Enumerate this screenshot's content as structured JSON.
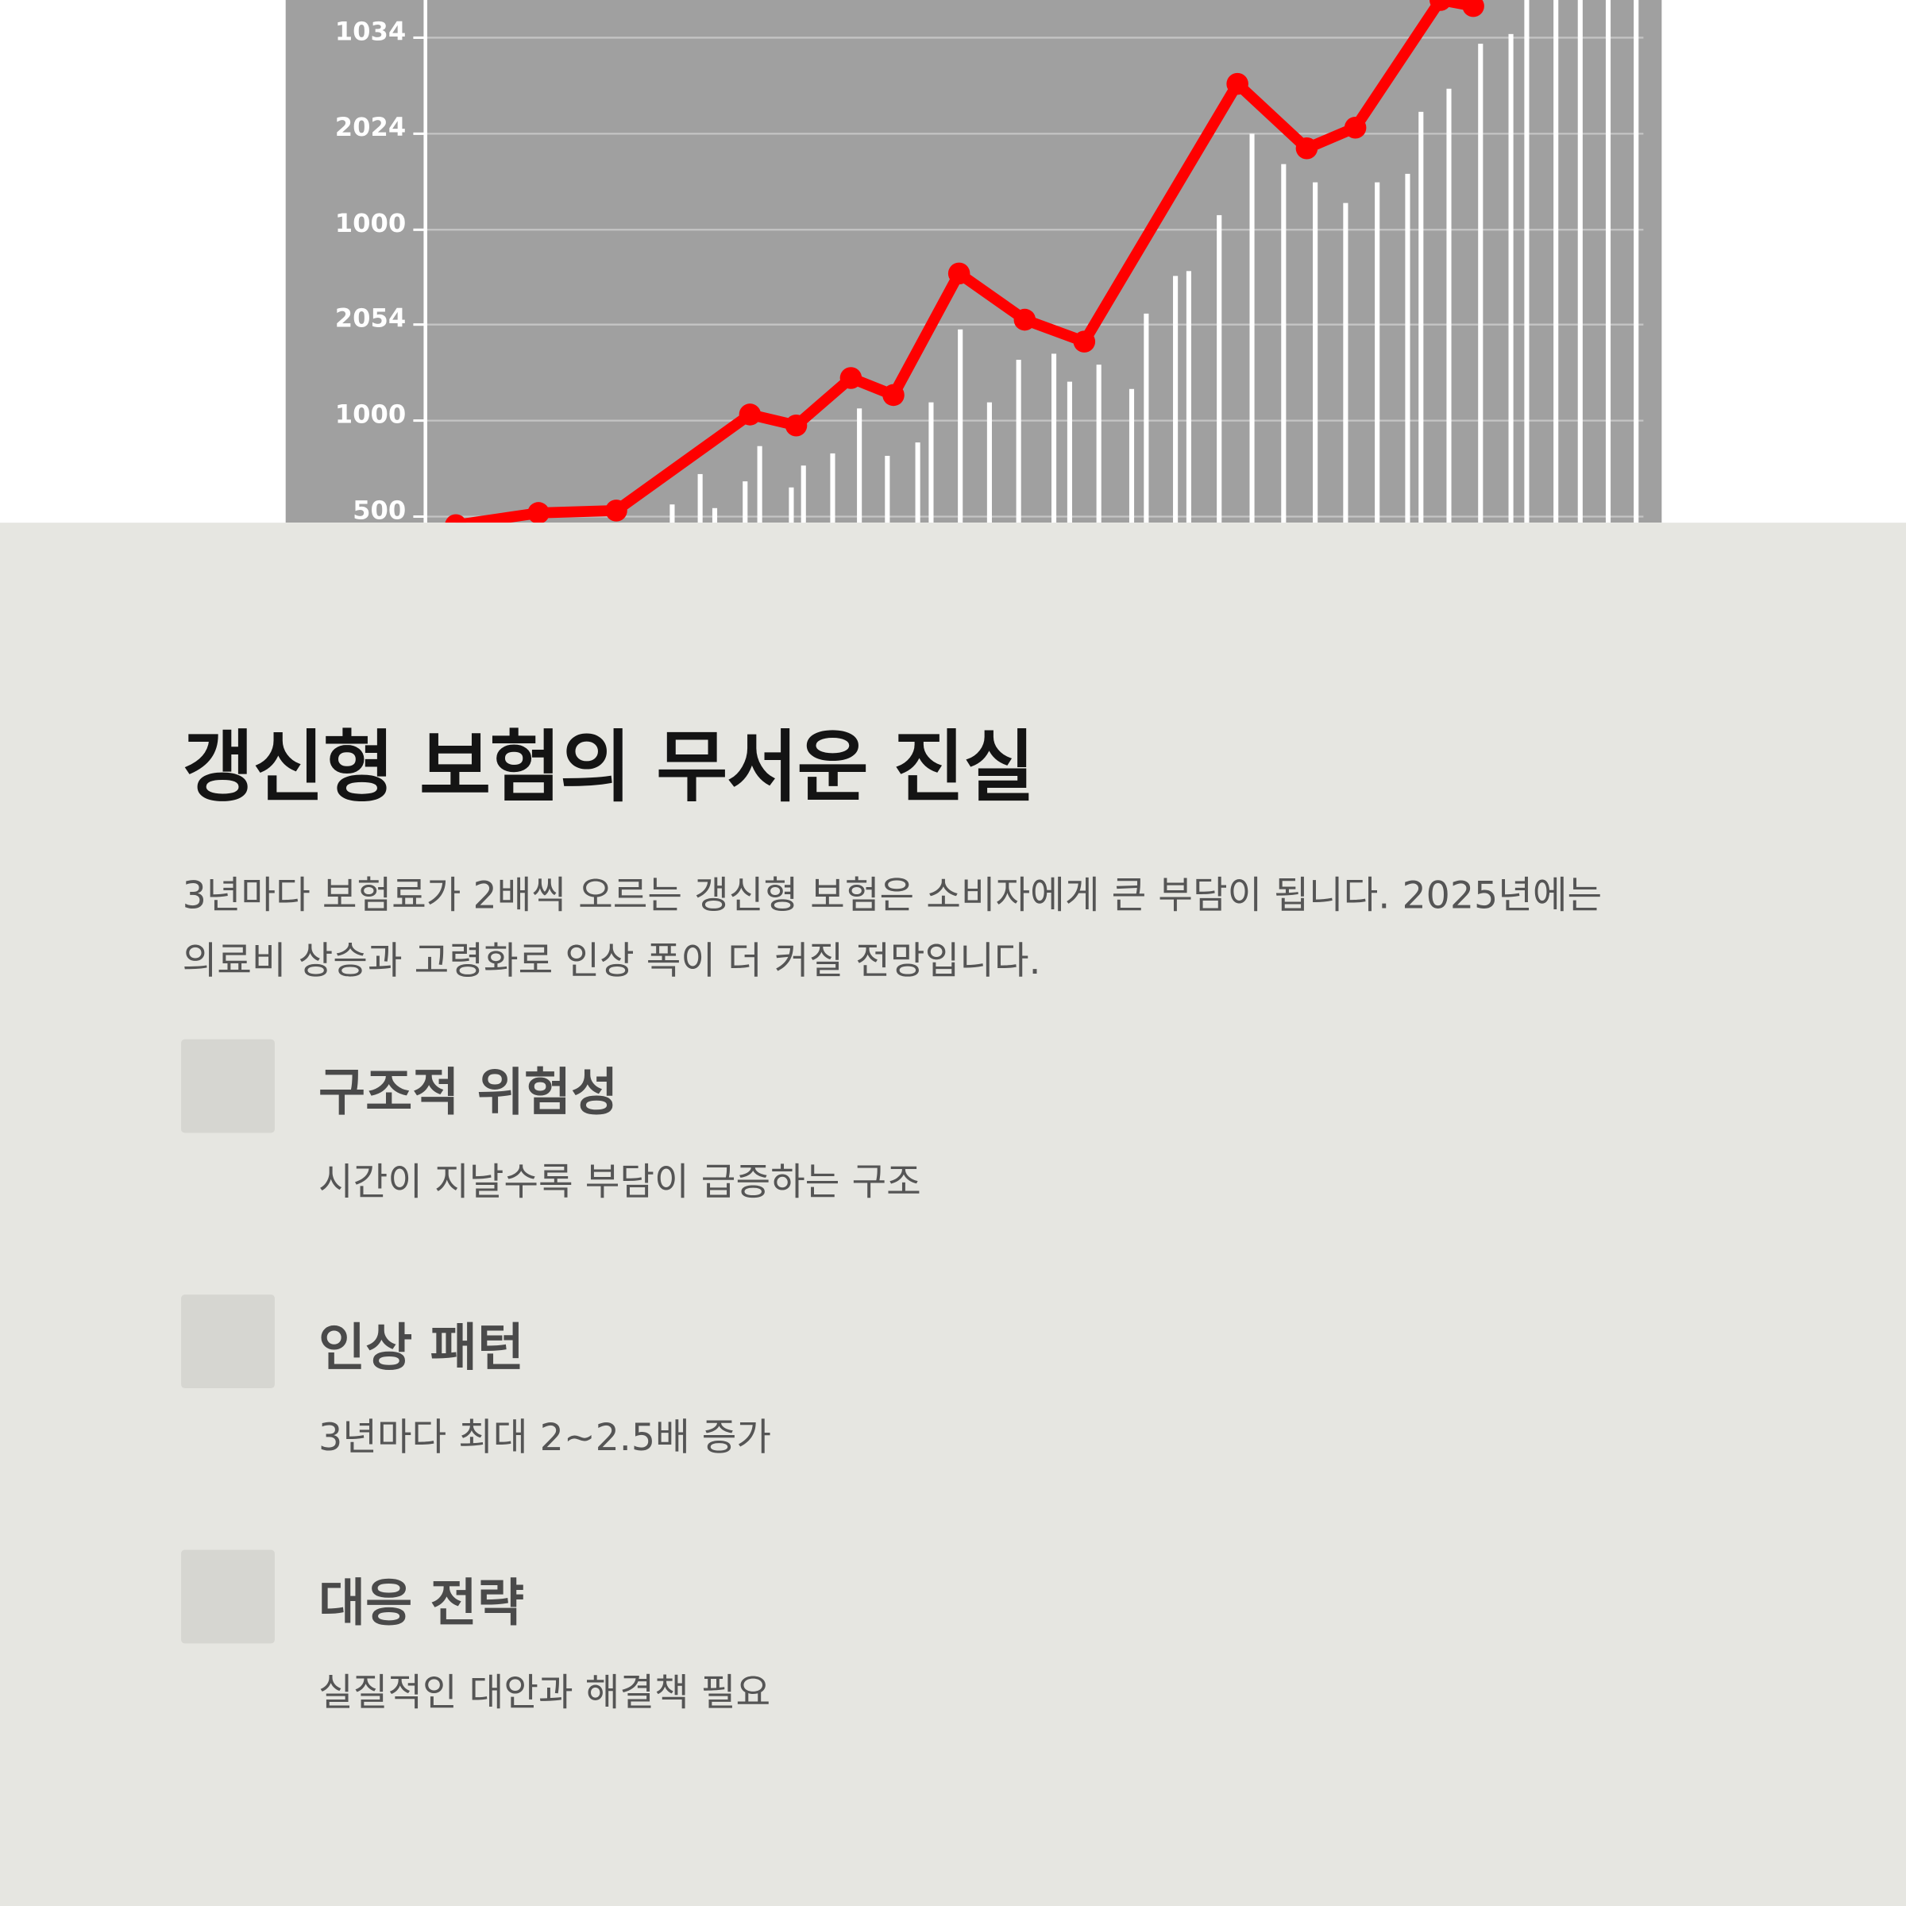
{
  "hero_image": {
    "tick_labels": [
      "1034",
      "2024",
      "1000",
      "2054",
      "1000",
      "500"
    ]
  },
  "content": {
    "title": "갱신형 보험의 무서운 진실",
    "intro": [
      "3년마다 보험료가 2배씩 오르는 갱신형 보험은 소비자에게 큰 부담이 됩니다. 2025년에는",
      "의료비 상승과 고령화로 인상 폭이 더 커질 전망입니다."
    ],
    "items": [
      {
        "heading": "구조적 위험성",
        "text": "시간이 지날수록 부담이 급증하는 구조"
      },
      {
        "heading": "인상 패턴",
        "text": "3년마다 최대 2~2.5배 증가"
      },
      {
        "heading": "대응 전략",
        "text": "실질적인 대안과 해결책 필요"
      }
    ]
  }
}
